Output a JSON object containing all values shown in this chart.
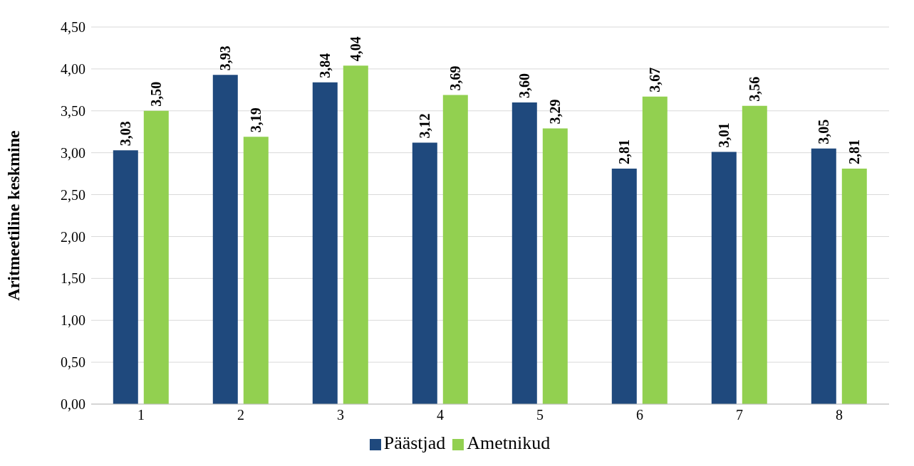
{
  "chart_data": {
    "type": "bar",
    "ylabel": "Aritmeetiline keskmine",
    "categories": [
      "1",
      "2",
      "3",
      "4",
      "5",
      "6",
      "7",
      "8"
    ],
    "series": [
      {
        "name": "Päästjad",
        "color": "#1f497d",
        "values": [
          3.03,
          3.93,
          3.84,
          3.12,
          3.6,
          2.81,
          3.01,
          3.05
        ],
        "value_labels": [
          "3,03",
          "3,93",
          "3,84",
          "3,12",
          "3,60",
          "2,81",
          "3,01",
          "3,05"
        ]
      },
      {
        "name": "Ametnikud",
        "color": "#92d050",
        "values": [
          3.5,
          3.19,
          4.04,
          3.69,
          3.29,
          3.67,
          3.56,
          2.81
        ],
        "value_labels": [
          "3,50",
          "3,19",
          "4,04",
          "3,69",
          "3,29",
          "3,67",
          "3,56",
          "2,81"
        ]
      }
    ],
    "ylim": [
      0,
      4.5
    ],
    "yticks": [
      {
        "value": 0,
        "label": "0,00"
      },
      {
        "value": 0.5,
        "label": "0,50"
      },
      {
        "value": 1,
        "label": "1,00"
      },
      {
        "value": 1.5,
        "label": "1,50"
      },
      {
        "value": 2,
        "label": "2,00"
      },
      {
        "value": 2.5,
        "label": "2,50"
      },
      {
        "value": 3,
        "label": "3,00"
      },
      {
        "value": 3.5,
        "label": "3,50"
      },
      {
        "value": 4,
        "label": "4,00"
      },
      {
        "value": 4.5,
        "label": "4,50"
      }
    ],
    "grid": "y",
    "legend": "bottom"
  }
}
